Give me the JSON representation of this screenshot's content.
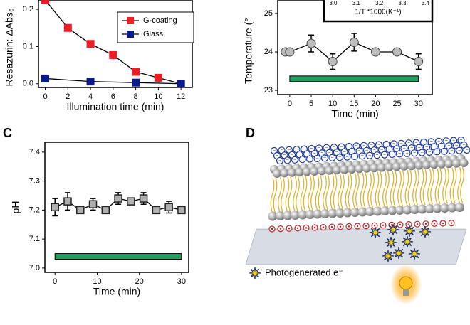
{
  "chart_data": [
    {
      "type": "line",
      "xlabel": "Illumination  time (min)",
      "ylabel": "Resazurin: ΔAbs₆",
      "xlim": [
        -0.6,
        13.0
      ],
      "ylim": [
        -0.01,
        0.225
      ],
      "xticks": [
        0,
        2,
        4,
        6,
        8,
        10,
        12
      ],
      "yticks": [
        {
          "value": 0,
          "label": "0.0"
        },
        0.1,
        0.2
      ],
      "legend": "top right",
      "series": [
        {
          "name": "G-coating",
          "color": "#ee1c25",
          "marker": "square",
          "x": [
            0,
            2,
            4,
            6,
            8,
            10,
            12
          ],
          "values": [
            0.225,
            0.15,
            0.107,
            0.077,
            0.032,
            0.016,
            0.0
          ]
        },
        {
          "name": "Glass",
          "color": "#0a1a8c",
          "marker": "square",
          "x": [
            0,
            4,
            8,
            12
          ],
          "values": [
            0.014,
            0.006,
            0.003,
            0.0
          ]
        }
      ]
    },
    {
      "type": "line",
      "xlabel": "Time (min)",
      "ylabel": "Temperature (°",
      "xlim": [
        -2.8,
        33.2
      ],
      "ylim": [
        22.89,
        25.35
      ],
      "xticks": [
        0,
        5,
        10,
        15,
        20,
        25,
        30
      ],
      "yticks": [
        23,
        24,
        25
      ],
      "series": [
        {
          "color": "#bdbdbd",
          "marker": "circle",
          "x": [
            -1,
            0,
            5,
            10,
            15,
            20,
            25,
            30
          ],
          "values": [
            24,
            24,
            24.22,
            23.75,
            24.25,
            24,
            24,
            23.75
          ],
          "errors": [
            0.05,
            0.05,
            0.22,
            0.2,
            0.23,
            0.05,
            0.05,
            0.2
          ]
        }
      ],
      "bar": {
        "x": [
          0,
          30
        ],
        "y": 23.3,
        "color": "#20a060"
      },
      "inset": {
        "xlabel": "1/T *1000(K⁻¹)",
        "xlim": [
          2.96,
          3.43
        ],
        "xticks": [
          {
            "value": 3,
            "label": "3.0"
          },
          3.1,
          3.2,
          3.3,
          3.4
        ]
      }
    },
    {
      "type": "line",
      "panel_label": "C",
      "xlabel": "Time (min)",
      "ylabel": "pH",
      "xlim": [
        -2.4,
        31.7
      ],
      "ylim": [
        6.985,
        7.434
      ],
      "xticks": [
        0,
        10,
        20,
        30
      ],
      "yticks": [
        {
          "value": 7,
          "label": "7.0"
        },
        7.1,
        7.2,
        7.3,
        7.4
      ],
      "series": [
        {
          "color": "#b0b0b0",
          "marker": "square",
          "x": [
            0,
            3,
            6,
            9,
            12,
            15,
            18,
            21,
            24,
            27,
            30
          ],
          "values": [
            7.21,
            7.23,
            7.2,
            7.22,
            7.2,
            7.24,
            7.23,
            7.24,
            7.2,
            7.21,
            7.2
          ],
          "errors": [
            0.03,
            0.03,
            0.01,
            0.02,
            0.01,
            0.02,
            0.01,
            0.02,
            0.01,
            0.02,
            0.01
          ]
        }
      ],
      "bar": {
        "x": [
          0,
          30
        ],
        "y": 7.04,
        "color": "#20a060"
      }
    }
  ],
  "panel_d": {
    "label": "D",
    "legend": "Photogenerated e⁻"
  }
}
